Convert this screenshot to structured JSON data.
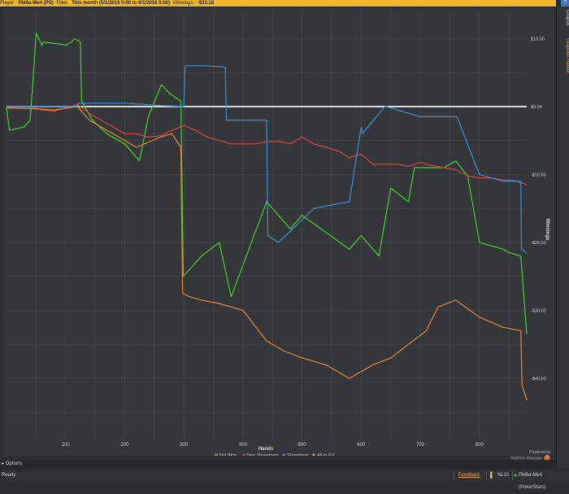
{
  "header": {
    "player_label": "Player:",
    "player_value": "Pbl6a-Me4 (PS)",
    "filter_label": "Filter:",
    "filter_value": "This month (5/1/2016 0:00 to 6/1/2016 0:00)",
    "winnings_label": "Winnings:",
    "winnings_value": "-$33.18",
    "help_label": "?"
  },
  "side_tabs": [
    "Graphs",
    "Graphed Hands"
  ],
  "footer": {
    "options": "Options",
    "ready": "Ready",
    "feedback": "Feedback",
    "stake": "NL10",
    "player": "Pbl6a-Me4 (PokerStars)",
    "powered_by": "Powered by",
    "brand": "Hold'em Manager",
    "brand_badge": "2"
  },
  "colors": {
    "net_won": "#45d12f",
    "non_showdown": "#d9453f",
    "showdown": "#3f8fd9",
    "all_in_ev": "#e8873a",
    "zero_line": "#ffffff",
    "accent": "#f0b62c"
  },
  "chart_data": {
    "type": "line",
    "xlabel": "Hands",
    "ylabel": "Winnings",
    "xlim": [
      0,
      880
    ],
    "ylim": [
      -49,
      14
    ],
    "x_ticks": [
      100,
      200,
      300,
      400,
      500,
      600,
      700,
      800
    ],
    "y_ticks": [
      10,
      0,
      -10,
      -20,
      -30,
      -40
    ],
    "y_tick_labels": [
      "$10.00",
      "$0.00",
      "-$10.00",
      "-$20.00",
      "-$30.00",
      "-$40.00"
    ],
    "grid": true,
    "legend_position": "bottom-center",
    "series": [
      {
        "name": "Net Won",
        "color": "#45d12f",
        "x": [
          0,
          5,
          30,
          40,
          45,
          50,
          60,
          62,
          90,
          100,
          110,
          115,
          125,
          127,
          145,
          170,
          200,
          225,
          240,
          262,
          275,
          295,
          299,
          330,
          360,
          380,
          440,
          460,
          480,
          500,
          580,
          600,
          630,
          650,
          680,
          690,
          740,
          760,
          780,
          800,
          840,
          850,
          870,
          880
        ],
        "y": [
          -0.2,
          -3.5,
          -3,
          -2,
          4,
          10.8,
          9,
          9.5,
          9.2,
          9,
          9.5,
          10,
          9.5,
          0.8,
          -2,
          -4,
          -5.5,
          -8,
          -1.5,
          3.2,
          2,
          0.8,
          -25,
          -22,
          -20,
          -28,
          -14,
          -16,
          -18,
          -16,
          -21,
          -19,
          -22,
          -12,
          -14,
          -9,
          -9,
          -8,
          -10.2,
          -20,
          -21,
          -21.5,
          -22,
          -33.5
        ]
      },
      {
        "name": "Non Showdown",
        "color": "#d9453f",
        "x": [
          0,
          20,
          40,
          60,
          80,
          100,
          120,
          140,
          160,
          180,
          200,
          220,
          240,
          260,
          280,
          300,
          320,
          340,
          360,
          380,
          400,
          420,
          440,
          460,
          480,
          500,
          520,
          540,
          560,
          580,
          600,
          620,
          640,
          660,
          680,
          700,
          720,
          740,
          760,
          780,
          800,
          820,
          840,
          860,
          880
        ],
        "y": [
          0,
          0,
          0,
          -0.5,
          -0.7,
          -0.2,
          0.3,
          -1,
          -2,
          -3,
          -4,
          -4,
          -4.5,
          -4.3,
          -3.5,
          -2.8,
          -3.5,
          -4.5,
          -5,
          -5.5,
          -5.5,
          -5.5,
          -5.2,
          -5.1,
          -5.5,
          -4.5,
          -5.5,
          -6,
          -6.5,
          -7.5,
          -7,
          -8.5,
          -8.5,
          -8.5,
          -8.8,
          -8.2,
          -8.7,
          -9,
          -9.3,
          -10.2,
          -10.5,
          -10.5,
          -10.8,
          -10.9,
          -11.5
        ]
      },
      {
        "name": "Showdown",
        "color": "#3f8fd9",
        "x": [
          0,
          60,
          120,
          122,
          200,
          250,
          300,
          302,
          340,
          370,
          372,
          440,
          442,
          460,
          520,
          580,
          600,
          602,
          640,
          642,
          700,
          760,
          762,
          800,
          840,
          870,
          871,
          880
        ],
        "y": [
          0,
          0,
          0,
          0.5,
          0.5,
          0.2,
          0,
          6,
          6,
          5.8,
          -2,
          -2,
          -19,
          -20,
          -15,
          -14,
          -3,
          -4,
          0,
          0,
          -1.5,
          -1.5,
          -1.5,
          -10,
          -11,
          -11,
          -21,
          -21.6
        ]
      },
      {
        "name": "All-In EV",
        "color": "#e8873a",
        "x": [
          0,
          40,
          80,
          120,
          140,
          180,
          220,
          260,
          280,
          295,
          298,
          310,
          330,
          360,
          400,
          440,
          470,
          500,
          540,
          580,
          620,
          650,
          680,
          710,
          730,
          760,
          800,
          840,
          870,
          872,
          880
        ],
        "y": [
          -0.2,
          -0.3,
          -0.5,
          0,
          -2,
          -4,
          -6,
          -4.5,
          -4,
          -6,
          -27.5,
          -28,
          -28.5,
          -29,
          -30,
          -34.5,
          -36,
          -37,
          -38,
          -40,
          -38,
          -37,
          -35,
          -33,
          -29.5,
          -28.5,
          -31,
          -32.5,
          -33,
          -41,
          -43.2
        ]
      }
    ]
  }
}
